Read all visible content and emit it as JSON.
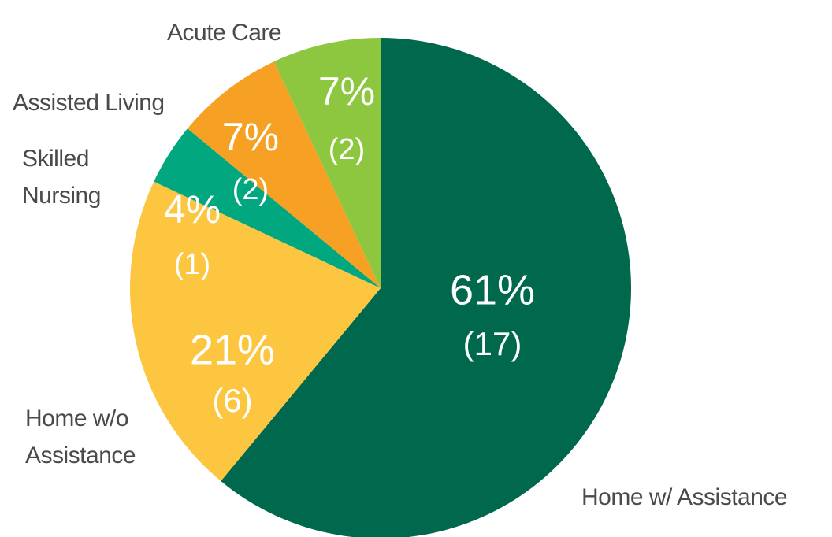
{
  "chart_data": {
    "type": "pie",
    "categories": [
      "Home w/ Assistance",
      "Home w/o Assistance",
      "Skilled Nursing",
      "Assisted Living",
      "Acute Care"
    ],
    "values": [
      61,
      21,
      4,
      7,
      7
    ],
    "value_labels": [
      "61%",
      "21%",
      "4%",
      "7%",
      "7%"
    ],
    "count_labels": [
      "(17)",
      "(6)",
      "(1)",
      "(2)",
      "(2)"
    ],
    "colors": [
      "#00684c",
      "#fdc641",
      "#00a77f",
      "#f6a124",
      "#8dc63f"
    ]
  }
}
